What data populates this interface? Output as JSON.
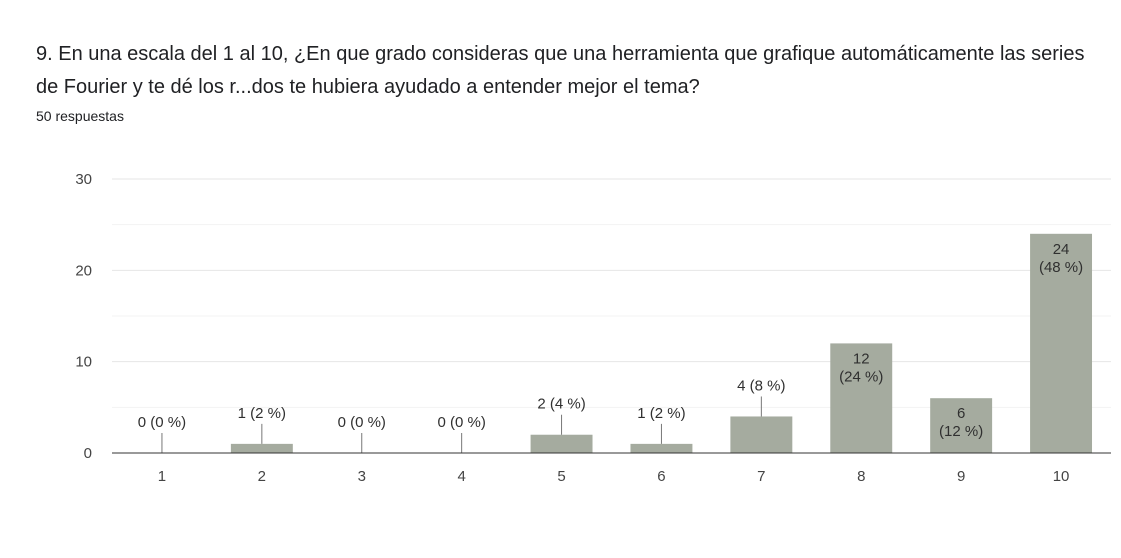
{
  "question": {
    "text": "9.  En una escala del 1 al 10, ¿En que grado consideras que una herramienta que grafique automáticamente las series de Fourier y te dé los r...dos te hubiera ayudado a entender mejor el tema?",
    "responses": "50 respuestas"
  },
  "chart_data": {
    "type": "bar",
    "categories": [
      "1",
      "2",
      "3",
      "4",
      "5",
      "6",
      "7",
      "8",
      "9",
      "10"
    ],
    "values": [
      0,
      1,
      0,
      0,
      2,
      1,
      4,
      12,
      6,
      24
    ],
    "labels": [
      "0 (0 %)",
      "1 (2 %)",
      "0 (0 %)",
      "0 (0 %)",
      "2 (4 %)",
      "1 (2 %)",
      "4 (8 %)",
      "12\n(24 %)",
      "6\n(12 %)",
      "24\n(48 %)"
    ],
    "ylim": [
      0,
      30
    ],
    "yticks": [
      "0",
      "10",
      "20",
      "30"
    ],
    "grid": true,
    "bar_color": "#a5ab9f"
  }
}
